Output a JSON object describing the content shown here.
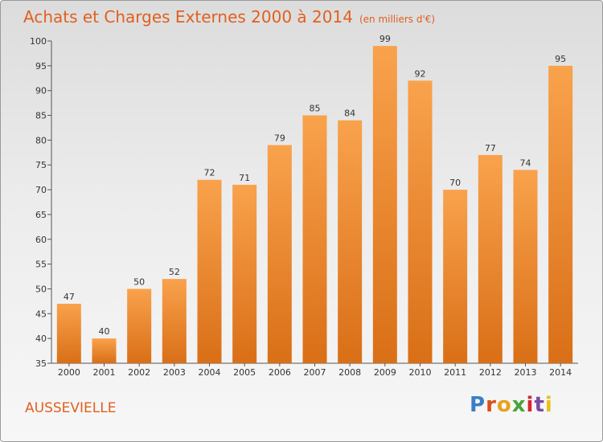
{
  "header": {
    "title": "Achats et Charges Externes 2000 à 2014",
    "unit": "(en milliers d'€)"
  },
  "footer": {
    "location": "AUSSEVIELLE",
    "logo_letters": [
      "P",
      "r",
      "o",
      "x",
      "i",
      "t",
      "i"
    ],
    "logo_colors": [
      "#3a7fc4",
      "#d94f1a",
      "#e8a21a",
      "#4aa33a",
      "#d9262f",
      "#7a4aa6",
      "#e8c01a"
    ]
  },
  "colors": {
    "bar_top": "#f9a24c",
    "bar_bottom": "#d96f17",
    "text": "#e06020"
  },
  "chart_data": {
    "type": "bar",
    "title": "Achats et Charges Externes 2000 à 2014",
    "subtitle": "(en milliers d'€)",
    "categories": [
      "2000",
      "2001",
      "2002",
      "2003",
      "2004",
      "2005",
      "2006",
      "2007",
      "2008",
      "2009",
      "2010",
      "2011",
      "2012",
      "2013",
      "2014"
    ],
    "values": [
      47,
      40,
      50,
      52,
      72,
      71,
      79,
      85,
      84,
      99,
      92,
      70,
      77,
      74,
      95
    ],
    "ylim": [
      35,
      100
    ],
    "yticks": [
      35,
      40,
      45,
      50,
      55,
      60,
      65,
      70,
      75,
      80,
      85,
      90,
      95,
      100
    ],
    "xlabel": "",
    "ylabel": "",
    "grid": false,
    "data_labels": true
  }
}
